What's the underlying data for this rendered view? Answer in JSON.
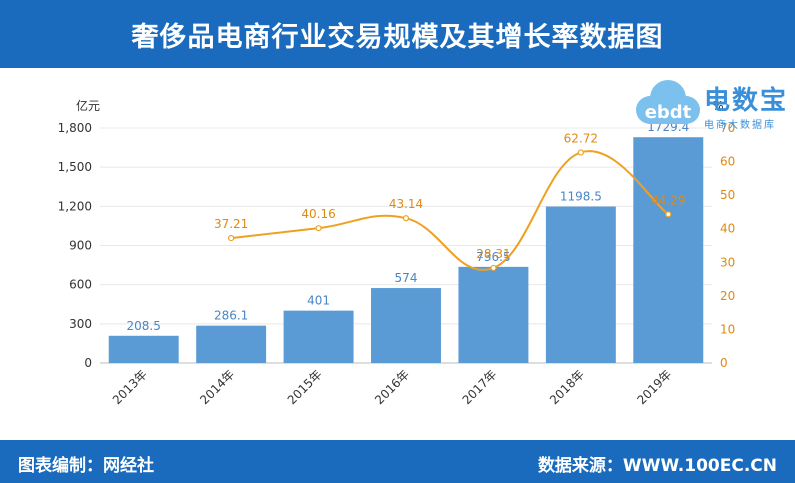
{
  "header": {
    "title": "奢侈品电商行业交易规模及其增长率数据图"
  },
  "footer": {
    "left": "图表编制：网经社",
    "right": "数据来源：WWW.100EC.CN"
  },
  "logo": {
    "main": "电数宝",
    "sub": "电商大数据库",
    "mark": "ebdt"
  },
  "chart_data": {
    "type": "bar",
    "title": "奢侈品电商行业交易规模及其增长率数据图",
    "categories": [
      "2013年",
      "2014年",
      "2015年",
      "2016年",
      "2017年",
      "2018年",
      "2019年"
    ],
    "series": [
      {
        "values": [
          208.5,
          286.1,
          401,
          574,
          736.5,
          1198.5,
          1729.4
        ],
        "labels": [
          "208.5",
          "286.1",
          "401",
          "574",
          "736.5",
          "1198.5",
          "1729.4"
        ],
        "axis": "left",
        "chart": "bar"
      },
      {
        "values": [
          null,
          37.21,
          40.16,
          43.14,
          28.31,
          62.72,
          44.29
        ],
        "labels": [
          "",
          "37.21",
          "40.16",
          "43.14",
          "28.31",
          "62.72",
          "44.29"
        ],
        "axis": "right",
        "chart": "line"
      }
    ],
    "ylabel": "亿元",
    "ylabel_right": "%",
    "ylim": [
      0,
      1800
    ],
    "yticks": [
      "0",
      "300",
      "600",
      "900",
      "1,200",
      "1,500",
      "1,800"
    ],
    "ylim_right": [
      0,
      70
    ],
    "yticks_right": [
      "0",
      "10",
      "20",
      "30",
      "40",
      "50",
      "60",
      "70"
    ],
    "colors": {
      "bar": "#5b9bd5",
      "line": "#f0a020",
      "bar_label": "#4a86c5",
      "line_label": "#e08a10"
    },
    "grid": true,
    "legend": "none"
  }
}
